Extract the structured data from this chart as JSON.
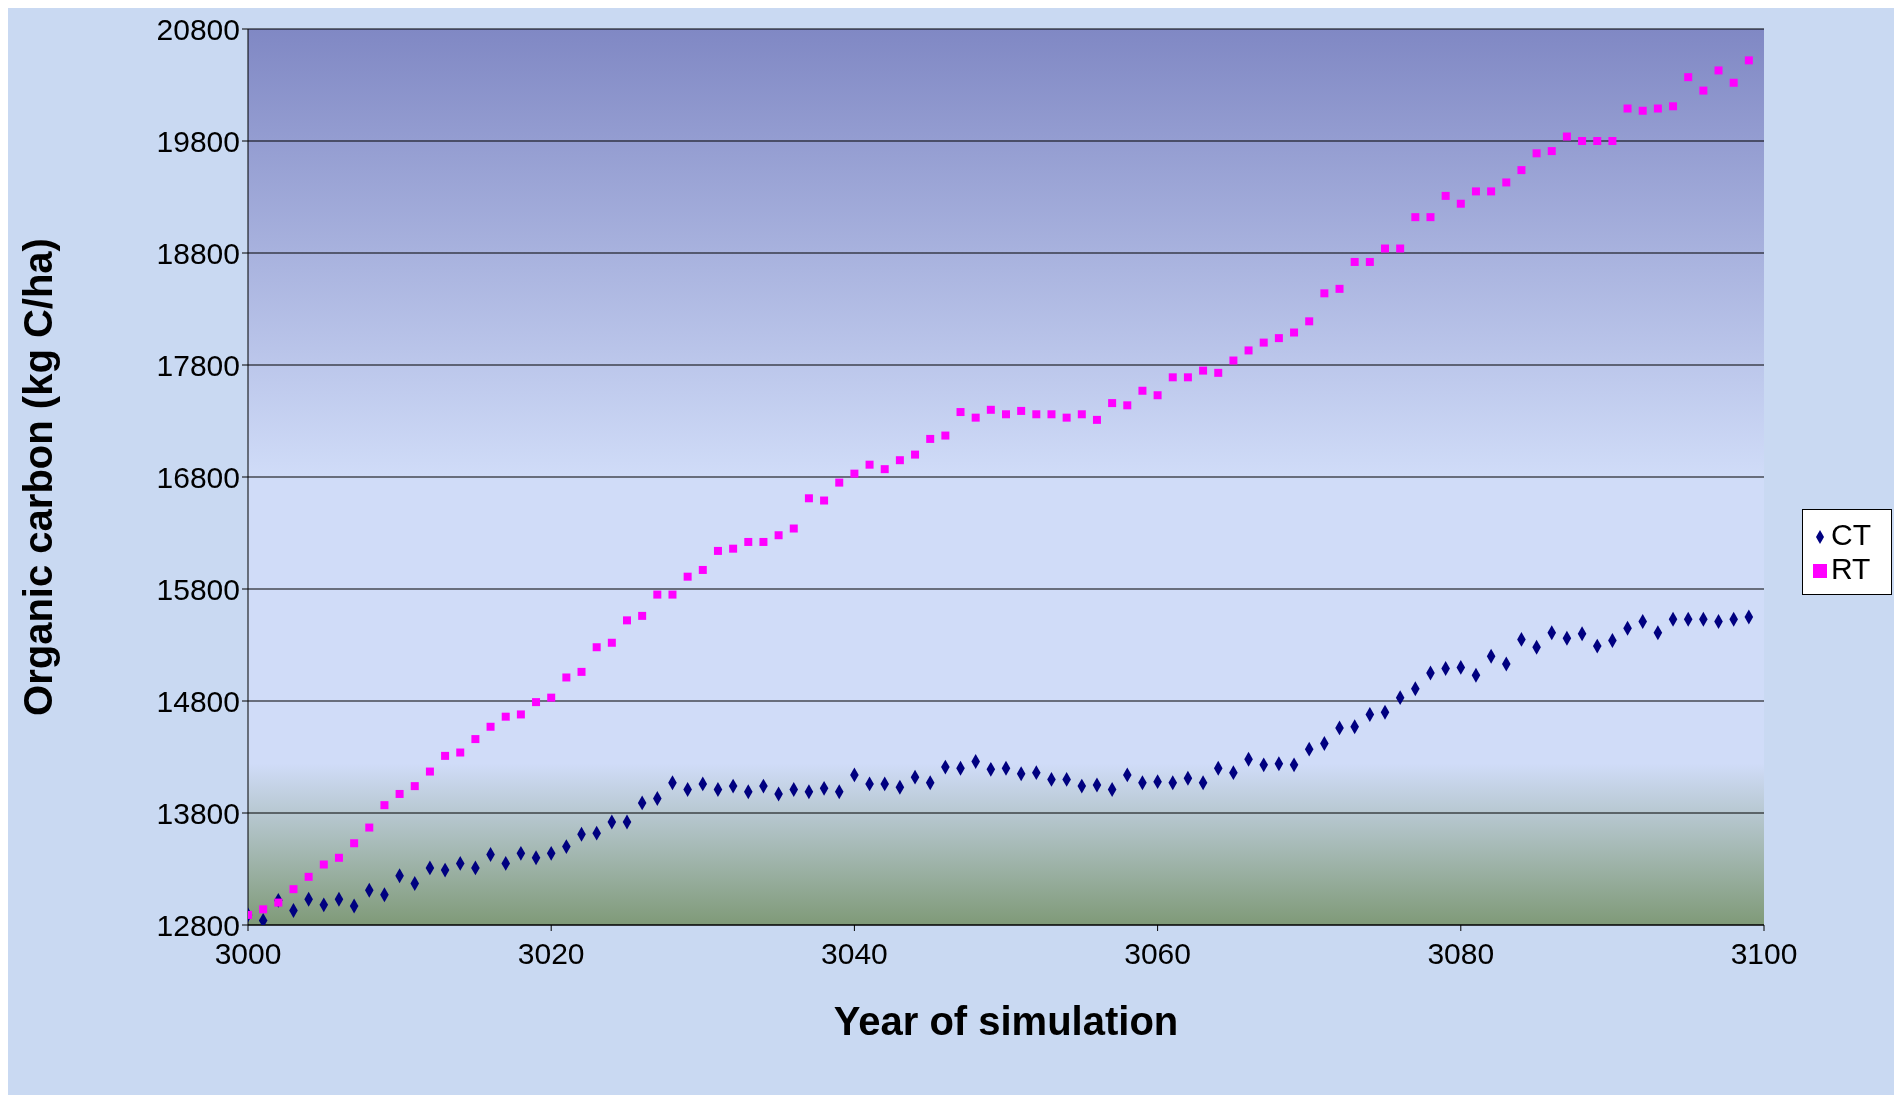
{
  "chart_data": {
    "type": "scatter",
    "xlabel": "Year of simulation",
    "ylabel": "Organic carbon (kg C/ha)",
    "x": [
      3000,
      3001,
      3002,
      3003,
      3004,
      3005,
      3006,
      3007,
      3008,
      3009,
      3010,
      3011,
      3012,
      3013,
      3014,
      3015,
      3016,
      3017,
      3018,
      3019,
      3020,
      3021,
      3022,
      3023,
      3024,
      3025,
      3026,
      3027,
      3028,
      3029,
      3030,
      3031,
      3032,
      3033,
      3034,
      3035,
      3036,
      3037,
      3038,
      3039,
      3040,
      3041,
      3042,
      3043,
      3044,
      3045,
      3046,
      3047,
      3048,
      3049,
      3050,
      3051,
      3052,
      3053,
      3054,
      3055,
      3056,
      3057,
      3058,
      3059,
      3060,
      3061,
      3062,
      3063,
      3064,
      3065,
      3066,
      3067,
      3068,
      3069,
      3070,
      3071,
      3072,
      3073,
      3074,
      3075,
      3076,
      3077,
      3078,
      3079,
      3080,
      3081,
      3082,
      3083,
      3084,
      3085,
      3086,
      3087,
      3088,
      3089,
      3090,
      3091,
      3092,
      3093,
      3094,
      3095,
      3096,
      3097,
      3098,
      3099
    ],
    "series": [
      {
        "name": "CT",
        "color": "#000080",
        "marker": "diamond",
        "values": [
          12890,
          12840,
          13020,
          12930,
          13030,
          12980,
          13030,
          12970,
          13110,
          13070,
          13240,
          13170,
          13310,
          13290,
          13350,
          13310,
          13430,
          13350,
          13440,
          13400,
          13440,
          13500,
          13610,
          13620,
          13720,
          13720,
          13890,
          13930,
          14070,
          14010,
          14060,
          14010,
          14040,
          13990,
          14040,
          13970,
          14010,
          13990,
          14020,
          13990,
          14140,
          14060,
          14060,
          14030,
          14120,
          14070,
          14210,
          14200,
          14260,
          14190,
          14200,
          14150,
          14160,
          14100,
          14100,
          14040,
          14050,
          14010,
          14140,
          14070,
          14080,
          14070,
          14110,
          14070,
          14200,
          14160,
          14280,
          14230,
          14240,
          14230,
          14370,
          14420,
          14560,
          14570,
          14680,
          14700,
          14830,
          14910,
          15050,
          15090,
          15100,
          15030,
          15200,
          15130,
          15350,
          15280,
          15410,
          15360,
          15400,
          15290,
          15340,
          15450,
          15510,
          15410,
          15530,
          15530,
          15530,
          15510,
          15530,
          15550
        ]
      },
      {
        "name": "RT",
        "color": "#ff00ff",
        "marker": "square",
        "values": [
          12890,
          12940,
          13000,
          13120,
          13230,
          13340,
          13400,
          13530,
          13670,
          13870,
          13970,
          14040,
          14170,
          14310,
          14340,
          14460,
          14570,
          14660,
          14680,
          14790,
          14830,
          15010,
          15060,
          15280,
          15320,
          15520,
          15560,
          15750,
          15750,
          15910,
          15970,
          16140,
          16160,
          16220,
          16220,
          16280,
          16340,
          16610,
          16590,
          16750,
          16830,
          16910,
          16870,
          16950,
          17000,
          17140,
          17170,
          17380,
          17330,
          17400,
          17360,
          17390,
          17360,
          17360,
          17330,
          17360,
          17310,
          17460,
          17440,
          17570,
          17530,
          17690,
          17690,
          17750,
          17730,
          17840,
          17930,
          18000,
          18040,
          18090,
          18190,
          18440,
          18480,
          18720,
          18720,
          18840,
          18840,
          19120,
          19120,
          19310,
          19240,
          19350,
          19350,
          19430,
          19540,
          19690,
          19710,
          19840,
          19800,
          19800,
          19800,
          20090,
          20070,
          20090,
          20110,
          20370,
          20250,
          20430,
          20320,
          20520
        ]
      }
    ],
    "xlim": [
      3000,
      3100
    ],
    "xticks": [
      3000,
      3020,
      3040,
      3060,
      3080,
      3100
    ],
    "ylim": [
      12800,
      20800
    ],
    "yticks": [
      12800,
      13800,
      14800,
      15800,
      16800,
      17800,
      18800,
      19800,
      20800
    ],
    "grid": "y",
    "legend": "right"
  }
}
